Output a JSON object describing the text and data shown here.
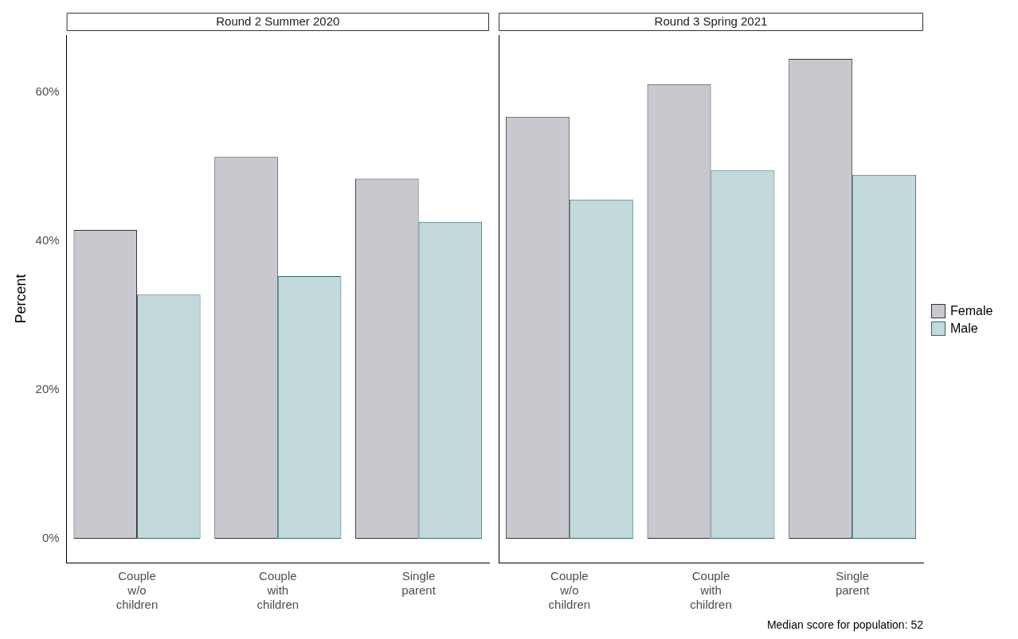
{
  "chart_data": [
    {
      "type": "bar",
      "title": "Round 2 Summer 2020",
      "ylabel": "Percent",
      "categories": [
        "Couple w/o children",
        "Couple with children",
        "Single parent"
      ],
      "series": [
        {
          "color": "#c9c8cf",
          "values": [
            41.5,
            51.3,
            48.4
          ]
        },
        {
          "color": "#c2dadc",
          "values": [
            32.8,
            35.3,
            42.6
          ]
        }
      ],
      "ylim": [
        -3.2,
        67.7
      ],
      "yticks": [
        {
          "value": 0,
          "label": "0%"
        },
        {
          "value": 20,
          "label": "20%"
        },
        {
          "value": 40,
          "label": "40%"
        },
        {
          "value": 60,
          "label": "60%"
        }
      ],
      "grid": false,
      "legend": false
    },
    {
      "type": "bar",
      "title": "Round 3 Spring 2021",
      "categories": [
        "Couple w/o children",
        "Couple with children",
        "Single parent"
      ],
      "series": [
        {
          "name": "Female",
          "color": "#c9c8cf",
          "values": [
            56.7,
            61.1,
            64.5
          ]
        },
        {
          "name": "Male",
          "color": "#c2dadc",
          "values": [
            45.6,
            49.5,
            48.9
          ]
        }
      ],
      "ylim": [
        -3.2,
        67.7
      ],
      "tick_labels": "x",
      "grid": false,
      "legend": "right",
      "annotations": [
        "Median score for population: 52"
      ]
    }
  ]
}
